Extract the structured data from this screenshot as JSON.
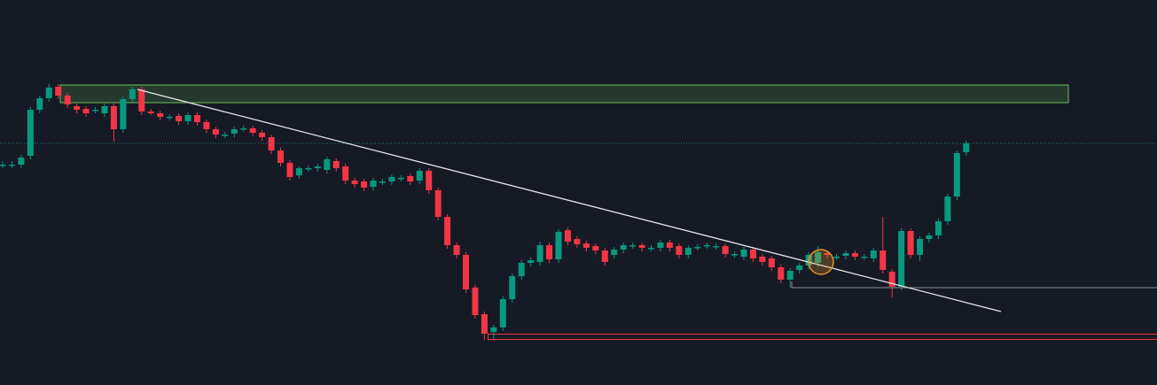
{
  "chart_data": {
    "type": "candlestick",
    "ylim": [
      0,
      435
    ],
    "up_color": "#089981",
    "down_color": "#f23645",
    "open": [
      249,
      249,
      249,
      259,
      311,
      324,
      337,
      327,
      315,
      312,
      311,
      307,
      315,
      289,
      323,
      334,
      309,
      307,
      303,
      304,
      298,
      305,
      297,
      289,
      283,
      284,
      290,
      290,
      285,
      280,
      265,
      251,
      237,
      245,
      245,
      243,
      253,
      247,
      231,
      230,
      224,
      230,
      230,
      234,
      236,
      231,
      242,
      220,
      190,
      158,
      147,
      110,
      80,
      60,
      65,
      97,
      123,
      138,
      139,
      158,
      142,
      175,
      165,
      160,
      157,
      152,
      147,
      153,
      158,
      158,
      155,
      155,
      161,
      157,
      147,
      156,
      158,
      157,
      157,
      148,
      145,
      153,
      145,
      143,
      133,
      119,
      130,
      135,
      138,
      149,
      145,
      146,
      149,
      145,
      143,
      152,
      128,
      111,
      174,
      147,
      165,
      169,
      185,
      213,
      263
    ],
    "close": [
      249,
      249,
      257,
      311,
      324,
      336,
      327,
      317,
      311,
      307,
      311,
      315,
      289,
      323,
      334,
      309,
      307,
      303,
      303,
      298,
      305,
      297,
      289,
      283,
      283,
      289,
      290,
      285,
      280,
      265,
      251,
      235,
      245,
      245,
      247,
      255,
      245,
      231,
      227,
      223,
      231,
      230,
      235,
      234,
      230,
      242,
      220,
      190,
      158,
      147,
      108,
      79,
      58,
      65,
      97,
      123,
      138,
      141,
      158,
      142,
      173,
      162,
      159,
      155,
      152,
      139,
      153,
      158,
      158,
      155,
      155,
      161,
      155,
      147,
      155,
      156,
      158,
      157,
      148,
      148,
      153,
      143,
      139,
      133,
      119,
      129,
      135,
      147,
      150,
      147,
      145,
      149,
      145,
      145,
      152,
      130,
      111,
      174,
      147,
      165,
      169,
      185,
      213,
      262,
      273
    ],
    "high": [
      253,
      253,
      260,
      314,
      327,
      340,
      340,
      330,
      318,
      315,
      314,
      318,
      318,
      326,
      337,
      337,
      312,
      310,
      306,
      307,
      308,
      308,
      300,
      292,
      286,
      292,
      293,
      293,
      288,
      283,
      268,
      254,
      247,
      248,
      250,
      258,
      256,
      250,
      234,
      233,
      234,
      233,
      238,
      237,
      239,
      245,
      245,
      223,
      193,
      161,
      150,
      113,
      83,
      68,
      100,
      126,
      141,
      144,
      162,
      161,
      176,
      178,
      168,
      163,
      160,
      155,
      156,
      161,
      161,
      161,
      158,
      164,
      164,
      160,
      158,
      159,
      161,
      160,
      160,
      151,
      156,
      156,
      148,
      146,
      136,
      132,
      138,
      150,
      157,
      152,
      148,
      152,
      152,
      148,
      155,
      190,
      131,
      177,
      177,
      168,
      172,
      188,
      216,
      265,
      276
    ],
    "low": [
      245,
      245,
      245,
      255,
      307,
      320,
      323,
      313,
      307,
      303,
      307,
      303,
      275,
      285,
      319,
      305,
      305,
      299,
      299,
      294,
      294,
      293,
      285,
      279,
      279,
      280,
      286,
      281,
      276,
      261,
      247,
      231,
      233,
      241,
      241,
      239,
      241,
      227,
      223,
      219,
      220,
      226,
      226,
      230,
      226,
      227,
      216,
      186,
      154,
      143,
      104,
      75,
      51,
      52,
      61,
      93,
      119,
      134,
      135,
      138,
      138,
      158,
      155,
      151,
      148,
      135,
      143,
      149,
      154,
      151,
      151,
      151,
      151,
      143,
      143,
      152,
      154,
      153,
      144,
      144,
      141,
      139,
      135,
      129,
      115,
      110,
      126,
      131,
      134,
      143,
      141,
      142,
      141,
      141,
      139,
      126,
      99,
      107,
      143,
      140,
      161,
      165,
      181,
      209,
      259
    ]
  }
}
